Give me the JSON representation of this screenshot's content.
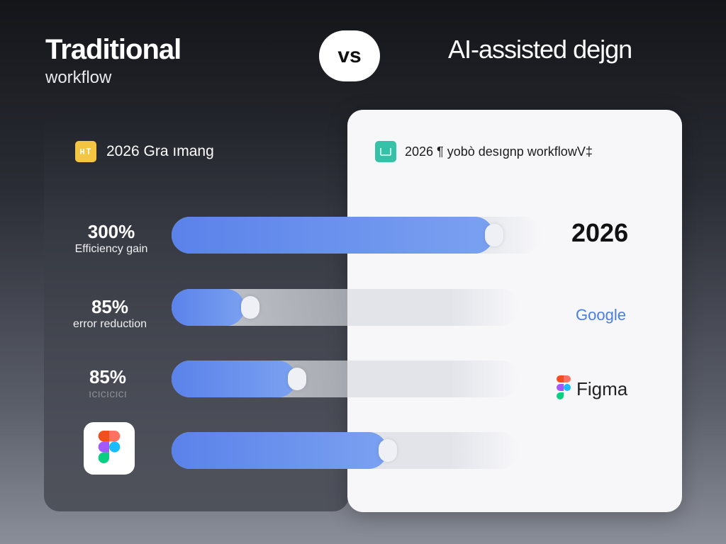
{
  "header": {
    "left_title": "Traditional",
    "left_subtitle": "workflow",
    "vs_label": "vs",
    "right_title": "AI-assisted dejgn"
  },
  "left_panel": {
    "header_text": "2026 Gra ımang",
    "header_icon": "yellow-square-icon",
    "stats": [
      {
        "value": "300%",
        "label": "Efficiency gain"
      },
      {
        "value": "85%",
        "label": "error reduction"
      },
      {
        "value": "85%",
        "label": "ıcıcıcıcı"
      }
    ],
    "tile_icon": "figma-logo-icon"
  },
  "right_panel": {
    "header_text": "2026 ¶ yobò desıgnp workflowV‡",
    "header_icon": "teal-square-icon",
    "labels": {
      "year": "2026",
      "google": "Google",
      "figma": "Figma"
    }
  },
  "bars": [
    {
      "fill_fraction": 0.87
    },
    {
      "fill_fraction": 0.21
    },
    {
      "fill_fraction": 0.36
    },
    {
      "fill_fraction": 0.62
    }
  ],
  "colors": {
    "bar_fill": "#5a82ea",
    "accent_yellow": "#f4c542",
    "accent_teal": "#35c2a8",
    "figma_red": "#f24e1e",
    "figma_purple": "#a259ff",
    "figma_blue": "#1abcfe",
    "figma_green": "#0acf83",
    "figma_orange": "#ff7262"
  }
}
